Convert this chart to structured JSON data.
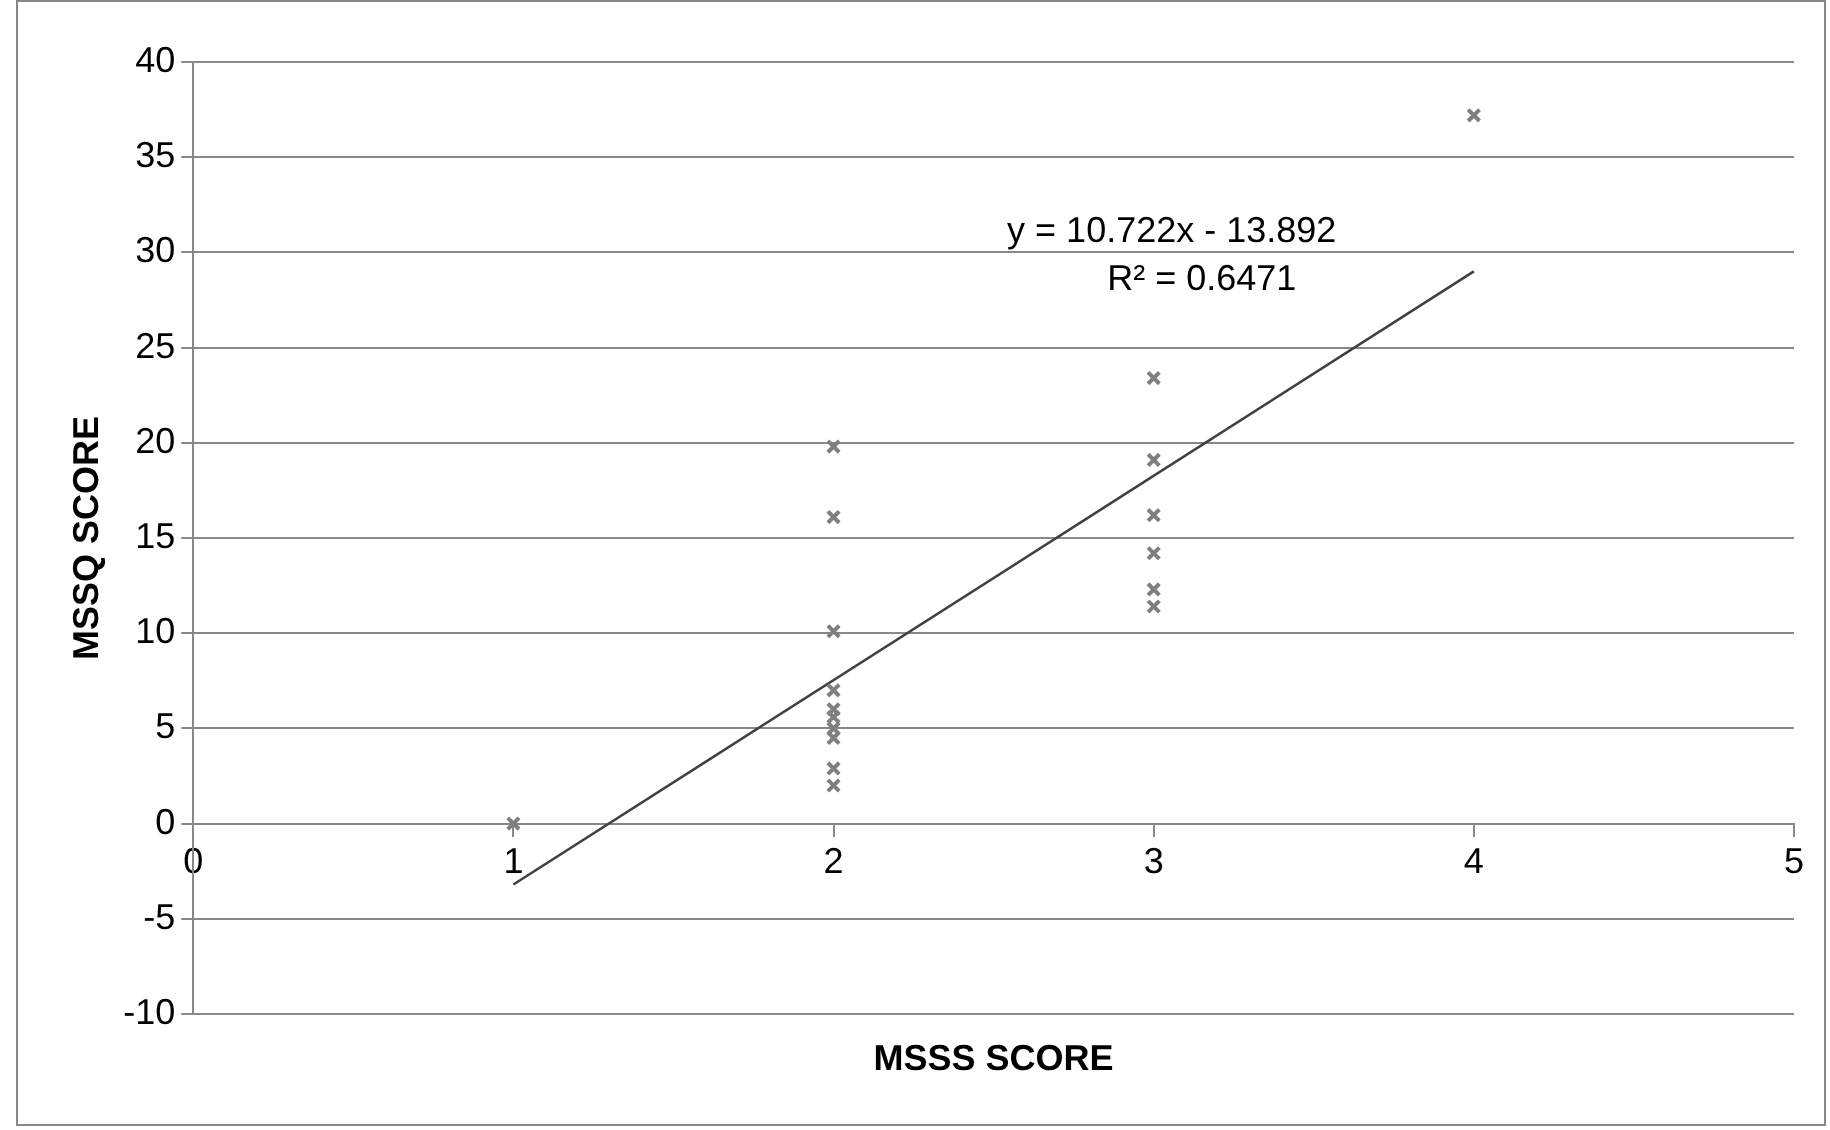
{
  "chart_data": {
    "type": "scatter",
    "xlabel": "MSSS SCORE",
    "ylabel": "MSSQ SCORE",
    "series": [
      {
        "color": "#7f7f7f",
        "x": [
          1,
          2,
          2,
          2,
          2,
          2,
          2,
          2,
          2,
          2,
          2,
          3,
          3,
          3,
          3,
          3,
          3,
          4
        ],
        "values": [
          0,
          19.8,
          16.1,
          10.1,
          7.0,
          6.0,
          5.6,
          5.0,
          4.5,
          2.9,
          2.0,
          23.4,
          19.1,
          16.2,
          14.2,
          12.3,
          11.4,
          37.2
        ]
      },
      {
        "type": "line",
        "color": "#404040",
        "x": [
          1,
          4
        ],
        "values": [
          -3.2,
          29.0
        ],
        "marker": "none"
      }
    ],
    "marker": "cross",
    "xlim": [
      0,
      5
    ],
    "xticks": [
      0,
      1,
      2,
      3,
      4,
      5
    ],
    "ylim": [
      -10,
      40
    ],
    "yticks": [
      -10,
      -5,
      0,
      5,
      10,
      15,
      20,
      25,
      30,
      35,
      40
    ],
    "grid": "y",
    "legend": false,
    "annotations": [
      "y = 10.722x - 13.892",
      "R² = 0.6471"
    ]
  }
}
